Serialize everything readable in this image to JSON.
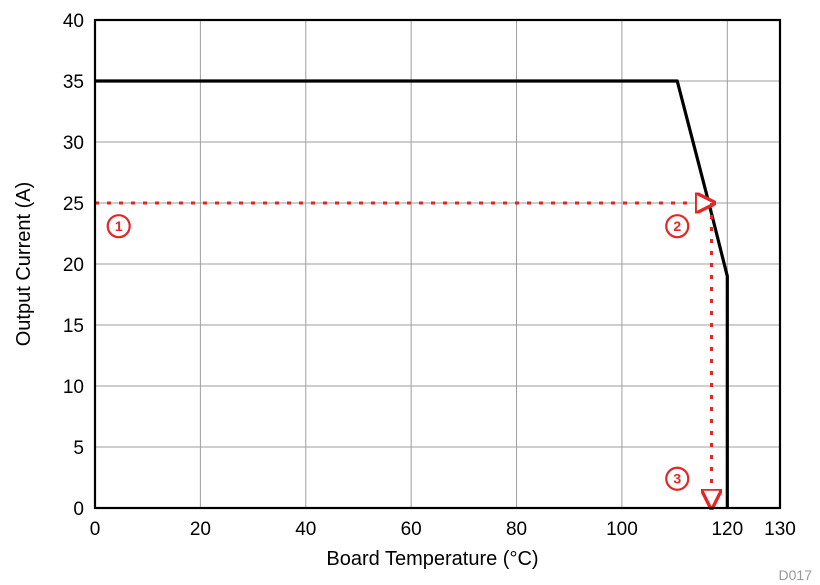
{
  "chart_data": {
    "type": "line",
    "xlabel": "Board Temperature (°C)",
    "ylabel": "Output Current (A)",
    "xlim": [
      0,
      130
    ],
    "ylim": [
      0,
      40
    ],
    "x_ticks": [
      0,
      20,
      40,
      60,
      80,
      100,
      120,
      130
    ],
    "y_ticks": [
      0,
      5,
      10,
      15,
      20,
      25,
      30,
      35,
      40
    ],
    "grid": true,
    "series": [
      {
        "color": "#000000",
        "style": "solid",
        "x": [
          0,
          110.5,
          116.5,
          120,
          120
        ],
        "y": [
          35,
          35,
          25,
          19,
          0
        ]
      }
    ],
    "annotations": [
      {
        "type": "dashed-line",
        "color": "#e32626",
        "x": [
          0,
          117.5
        ],
        "y": [
          25,
          25
        ],
        "arrow": "end"
      },
      {
        "type": "dashed-line",
        "color": "#e32626",
        "x": [
          117,
          117
        ],
        "y": [
          25,
          0
        ],
        "arrow": "end"
      }
    ],
    "markers": [
      {
        "label": "1",
        "x": 4.5,
        "y": 23.1
      },
      {
        "label": "2",
        "x": 110.5,
        "y": 23.1
      },
      {
        "label": "3",
        "x": 110.5,
        "y": 2.4
      }
    ],
    "figure_id": "D017"
  }
}
